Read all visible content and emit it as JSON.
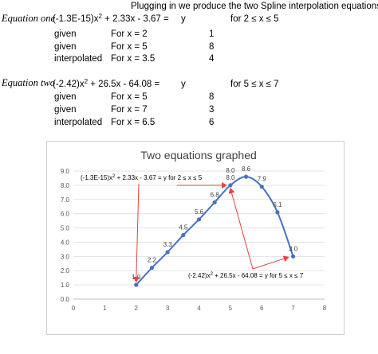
{
  "header": {
    "title": "Plugging in we produce the two Spline interpolation equations"
  },
  "equation_one": {
    "label": "Equation one",
    "lhs_pre": "(-1.3E-15)x",
    "sup": "2",
    "lhs_post": " + 2.33x - 3.67 =",
    "rhs": "y",
    "range": "for 2 ≤ x ≤ 5",
    "rows": [
      {
        "kind": "given",
        "cond": "For x = 2",
        "value": "1"
      },
      {
        "kind": "given",
        "cond": "For x = 5",
        "value": "8"
      },
      {
        "kind": "interpolated",
        "cond": "For x = 3.5",
        "value": "4"
      }
    ]
  },
  "equation_two": {
    "label": "Equation two",
    "lhs_pre": "(-2.42)x",
    "sup": "2",
    "lhs_post": " + 26.5x - 64.08 =",
    "rhs": "y",
    "range": "for 5 ≤ x ≤ 7",
    "rows": [
      {
        "kind": "given",
        "cond": "For x = 5",
        "value": "8"
      },
      {
        "kind": "given",
        "cond": "For x = 7",
        "value": "3"
      },
      {
        "kind": "interpolated",
        "cond": "For x = 6.5",
        "value": "6"
      }
    ]
  },
  "chart_data": {
    "type": "scatter",
    "title": "Two equations graphed",
    "xlim": [
      0,
      8
    ],
    "ylim": [
      0,
      9
    ],
    "x_ticks": [
      0,
      1,
      2,
      3,
      4,
      5,
      6,
      7,
      8
    ],
    "y_ticks": [
      "0.0",
      "1.0",
      "2.0",
      "3.0",
      "4.0",
      "5.0",
      "6.0",
      "7.0",
      "8.0",
      "9.0"
    ],
    "grid": true,
    "series": [
      {
        "color": "#4472c4",
        "x": [
          2,
          2.5,
          3,
          3.5,
          4,
          4.5,
          5,
          5.5,
          6,
          6.5,
          7
        ],
        "y": [
          1.0,
          2.2,
          3.3,
          4.5,
          5.6,
          6.8,
          8.0,
          8.6,
          7.9,
          6.1,
          3.0
        ],
        "labels": [
          "1.0",
          "2.2",
          "3.3",
          "4.5",
          "5.6",
          "6.8",
          "8.0",
          "8.6",
          "7.9",
          "6.1",
          "3.0"
        ]
      }
    ],
    "extra_labels": [
      {
        "x": 5,
        "y": 8.0,
        "text": "8.0"
      }
    ],
    "annotations": [
      {
        "text": "(-1.3E-15)x^2 + 2.33x - 3.67 = y  for 2 ≤ x ≤ 5"
      },
      {
        "text": "(-2.42)x^2 + 26.5x - 64.08 = y  for 5 ≤ x ≤ 7"
      }
    ],
    "arrow_color": "#e8413e"
  }
}
